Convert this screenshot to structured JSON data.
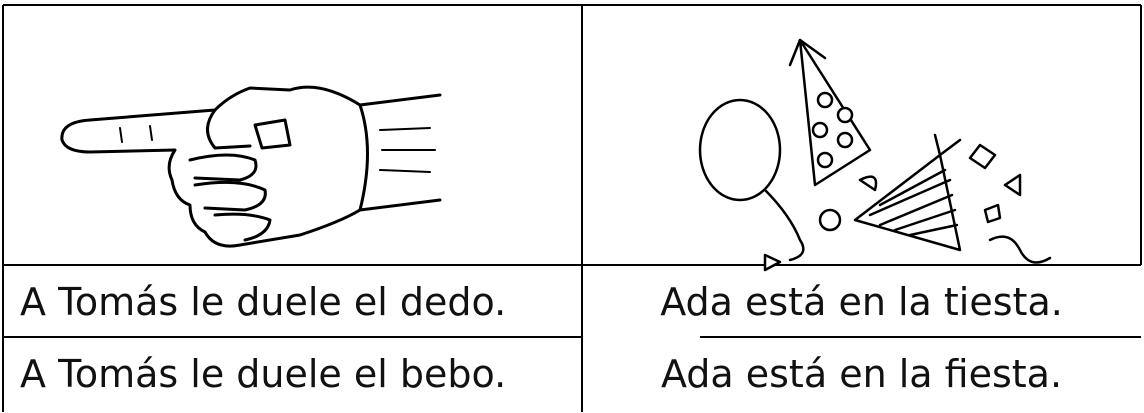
{
  "table": {
    "rows": [
      [
        "A Tomás le duele el dedo.",
        "Ada está en la tiesta."
      ],
      [
        "A Tomás le duele el bebo.",
        "Ada está en la fiesta."
      ]
    ]
  }
}
